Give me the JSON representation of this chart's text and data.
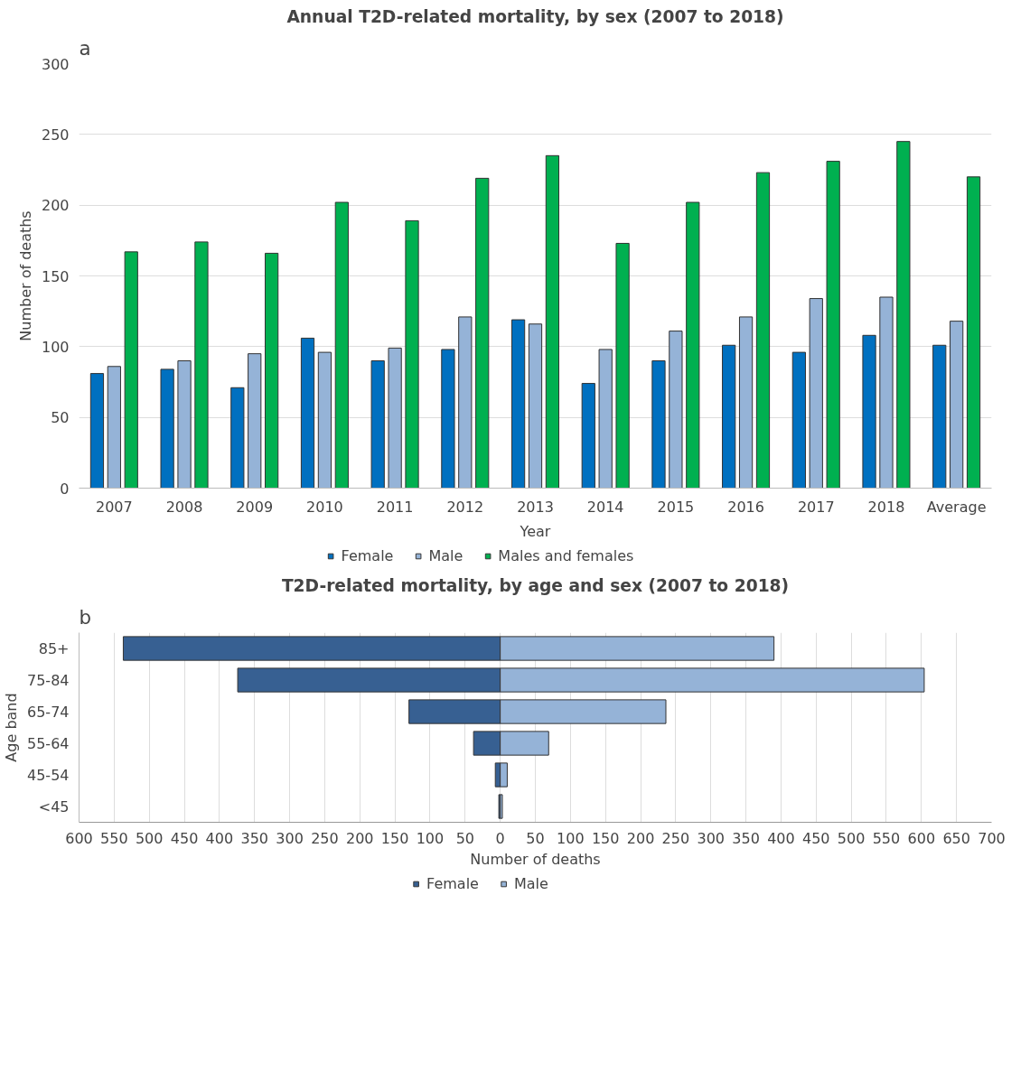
{
  "chart_data": [
    {
      "type": "bar",
      "title": "Annual T2D-related mortality, by sex (2007 to 2018)",
      "xlabel": "Year",
      "ylabel": "Number of deaths",
      "annotations": [
        "a"
      ],
      "categories": [
        "2007",
        "2008",
        "2009",
        "2010",
        "2011",
        "2012",
        "2013",
        "2014",
        "2015",
        "2016",
        "2017",
        "2018",
        "Average"
      ],
      "series": [
        {
          "name": "Female",
          "color": "#0070c0",
          "values": [
            81,
            84,
            71,
            106,
            90,
            98,
            119,
            74,
            90,
            101,
            96,
            108,
            101
          ]
        },
        {
          "name": "Male",
          "color": "#95b3d7",
          "values": [
            86,
            90,
            95,
            96,
            99,
            121,
            116,
            98,
            111,
            121,
            134,
            135,
            118
          ]
        },
        {
          "name": "Males and females",
          "color": "#00b050",
          "values": [
            167,
            174,
            166,
            202,
            189,
            219,
            235,
            173,
            202,
            223,
            231,
            245,
            220
          ]
        }
      ],
      "ylim": [
        0,
        300
      ],
      "yticks": [
        0,
        50,
        100,
        150,
        200,
        250,
        300
      ],
      "grid": "y",
      "legend": "bottom"
    },
    {
      "type": "bar",
      "orientation": "horizontal",
      "stacked": true,
      "title": "T2D-related mortality, by age and sex (2007 to 2018)",
      "xlabel": "Number of deaths",
      "ylabel": "Age band",
      "annotations": [
        "b"
      ],
      "categories": [
        "85+",
        "75-84",
        "65-74",
        "55-64",
        "45-54",
        "<45"
      ],
      "series": [
        {
          "name": "Female",
          "color": "#376092",
          "values": [
            -537,
            -374,
            -130,
            -38,
            -7,
            -2
          ]
        },
        {
          "name": "Male",
          "color": "#95b3d7",
          "values": [
            390,
            604,
            236,
            69,
            10,
            3
          ]
        }
      ],
      "xlim": [
        -600,
        700
      ],
      "xticks": [
        {
          "value": -600,
          "label": "600"
        },
        {
          "value": -550,
          "label": "550"
        },
        {
          "value": -500,
          "label": "500"
        },
        {
          "value": -450,
          "label": "450"
        },
        {
          "value": -400,
          "label": "400"
        },
        {
          "value": -350,
          "label": "350"
        },
        {
          "value": -300,
          "label": "300"
        },
        {
          "value": -250,
          "label": "250"
        },
        {
          "value": -200,
          "label": "200"
        },
        {
          "value": -150,
          "label": "150"
        },
        {
          "value": -100,
          "label": "100"
        },
        {
          "value": -50,
          "label": "50"
        },
        0,
        50,
        100,
        150,
        200,
        250,
        300,
        350,
        400,
        450,
        500,
        550,
        600,
        650,
        700
      ],
      "grid": "x",
      "legend": "bottom"
    }
  ]
}
